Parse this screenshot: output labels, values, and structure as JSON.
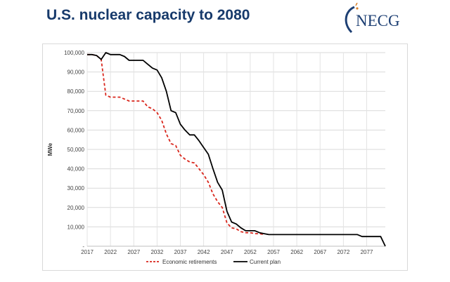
{
  "slide": {
    "title": "U.S. nuclear capacity to 2080",
    "logo_text": "NECG",
    "colors": {
      "title": "#173a6b",
      "logo": "#1d3f73",
      "logo_accent": "#d9822b"
    }
  },
  "chart_data": {
    "type": "line",
    "title": "",
    "xlabel": "",
    "ylabel": "MWe",
    "xlim": [
      2017,
      2081
    ],
    "ylim": [
      0,
      100000
    ],
    "x_ticks": [
      2017,
      2022,
      2027,
      2032,
      2037,
      2042,
      2047,
      2052,
      2057,
      2062,
      2067,
      2072,
      2077
    ],
    "y_ticks": [
      {
        "value": 0,
        "label": "-"
      },
      {
        "value": 10000,
        "label": "10,000"
      },
      {
        "value": 20000,
        "label": "20,000"
      },
      {
        "value": 30000,
        "label": "30,000"
      },
      {
        "value": 40000,
        "label": "40,000"
      },
      {
        "value": 50000,
        "label": "50,000"
      },
      {
        "value": 60000,
        "label": "60,000"
      },
      {
        "value": 70000,
        "label": "70,000"
      },
      {
        "value": 80000,
        "label": "80,000"
      },
      {
        "value": 90000,
        "label": "90,000"
      },
      {
        "value": 100000,
        "label": "100,000"
      }
    ],
    "grid": true,
    "legend_position": "bottom",
    "series": [
      {
        "name": "Economic retirements",
        "color": "#d9261c",
        "dashed": true,
        "x": [
          2017,
          2018,
          2019,
          2020,
          2021,
          2022,
          2023,
          2024,
          2025,
          2026,
          2027,
          2028,
          2029,
          2030,
          2031,
          2032,
          2033,
          2034,
          2035,
          2036,
          2037,
          2038,
          2039,
          2040,
          2041,
          2042,
          2043,
          2044,
          2045,
          2046,
          2047,
          2048,
          2049,
          2050,
          2051,
          2052,
          2053,
          2054,
          2055
        ],
        "values": [
          99000,
          99000,
          98500,
          96500,
          78000,
          77000,
          77000,
          77000,
          76000,
          75000,
          75000,
          75000,
          75000,
          72000,
          71000,
          69000,
          65000,
          58000,
          53000,
          52000,
          47000,
          45000,
          43500,
          43000,
          40000,
          37000,
          33000,
          27000,
          23000,
          20000,
          12000,
          9500,
          9000,
          7500,
          7000,
          7000,
          6500,
          6500,
          6000
        ]
      },
      {
        "name": "Current plan",
        "color": "#000000",
        "dashed": false,
        "x": [
          2017,
          2018,
          2019,
          2020,
          2021,
          2022,
          2023,
          2024,
          2025,
          2026,
          2027,
          2028,
          2029,
          2030,
          2031,
          2032,
          2033,
          2034,
          2035,
          2036,
          2037,
          2038,
          2039,
          2040,
          2041,
          2042,
          2043,
          2044,
          2045,
          2046,
          2047,
          2048,
          2049,
          2050,
          2051,
          2052,
          2053,
          2054,
          2055,
          2056,
          2057,
          2060,
          2065,
          2070,
          2074,
          2075,
          2076,
          2077,
          2078,
          2079,
          2080,
          2081
        ],
        "values": [
          99000,
          99000,
          98500,
          96500,
          100000,
          99000,
          99000,
          99000,
          98000,
          96000,
          96000,
          96000,
          96000,
          94000,
          92000,
          91000,
          87000,
          80000,
          70000,
          69000,
          63000,
          60000,
          57500,
          57500,
          54500,
          51000,
          47500,
          40000,
          33000,
          29000,
          18000,
          12500,
          11500,
          9500,
          8000,
          8000,
          8000,
          7000,
          6500,
          6000,
          6000,
          6000,
          6000,
          6000,
          6000,
          6000,
          5000,
          5000,
          5000,
          5000,
          5000,
          0
        ]
      }
    ]
  }
}
